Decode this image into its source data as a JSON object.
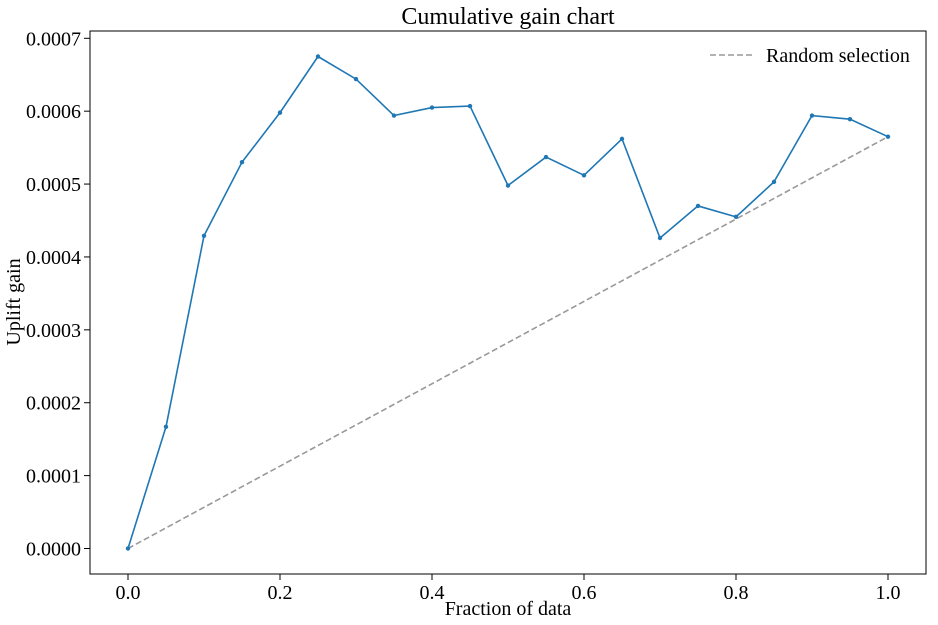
{
  "chart_data": {
    "type": "line",
    "title": "Cumulative gain chart",
    "xlabel": "Fraction of data",
    "ylabel": "Uplift gain",
    "xlim": [
      -0.05,
      1.05
    ],
    "ylim": [
      -3.5e-05,
      0.00071
    ],
    "x_ticks": [
      0.0,
      0.2,
      0.4,
      0.6,
      0.8,
      1.0
    ],
    "x_tick_labels": [
      "0.0",
      "0.2",
      "0.4",
      "0.6",
      "0.8",
      "1.0"
    ],
    "y_ticks": [
      0.0,
      0.0001,
      0.0002,
      0.0003,
      0.0004,
      0.0005,
      0.0006,
      0.0007
    ],
    "y_tick_labels": [
      "0.0000",
      "0.0001",
      "0.0002",
      "0.0003",
      "0.0004",
      "0.0005",
      "0.0006",
      "0.0007"
    ],
    "grid": false,
    "legend_position": "top-right",
    "x": [
      0.0,
      0.05,
      0.1,
      0.15,
      0.2,
      0.25,
      0.3,
      0.35,
      0.4,
      0.45,
      0.5,
      0.55,
      0.6,
      0.65,
      0.7,
      0.75,
      0.8,
      0.85,
      0.9,
      0.95,
      1.0
    ],
    "series": [
      {
        "values": [
          0.0,
          0.000167,
          0.000429,
          0.00053,
          0.000598,
          0.000675,
          0.000644,
          0.000594,
          0.000605,
          0.000607,
          0.000498,
          0.000537,
          0.000512,
          0.000562,
          0.000426,
          0.00047,
          0.000455,
          0.000503,
          0.000594,
          0.000589,
          0.000565
        ],
        "color": "#1f77b4",
        "style": "solid",
        "marker": "dot"
      },
      {
        "name": "Random selection",
        "x": [
          0.0,
          1.0
        ],
        "values": [
          0.0,
          0.000565
        ],
        "color": "#999999",
        "style": "dashed"
      }
    ]
  }
}
